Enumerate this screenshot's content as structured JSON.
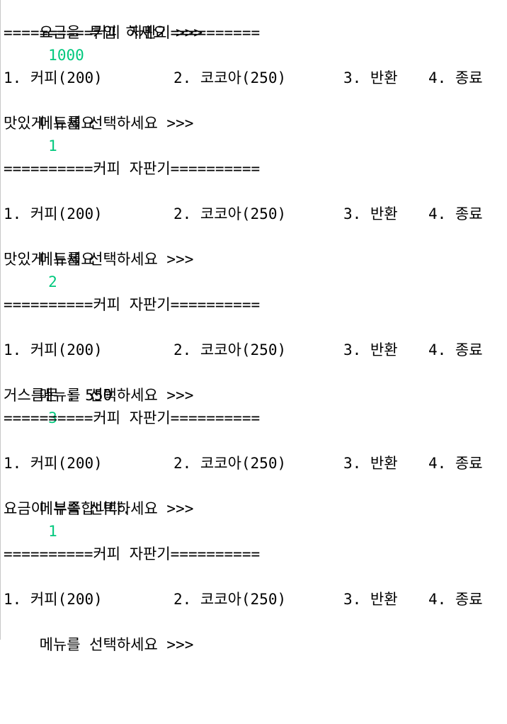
{
  "console": {
    "text_color": "#000000",
    "input_color": "#00c87d",
    "background": "#ffffff",
    "coin_prompt": "요금을 투입 하세요 >>>",
    "coin_input": "1000",
    "banner": "==========커피 자판기==========",
    "menu_items": [
      "1. 커피(200)",
      "2. 코코아(250)",
      "3. 반환",
      "4. 종료"
    ],
    "menu_prompt": "메뉴를 선택하세요 >>>",
    "round1": {
      "input": "1",
      "message": "맛있게 드세요"
    },
    "round2": {
      "input": "2",
      "message": "맛있게 드세요"
    },
    "round3": {
      "input": "3",
      "message": "거스름돈 : 550"
    },
    "round4": {
      "input": "1",
      "message": "요금이 부족합니다."
    }
  }
}
